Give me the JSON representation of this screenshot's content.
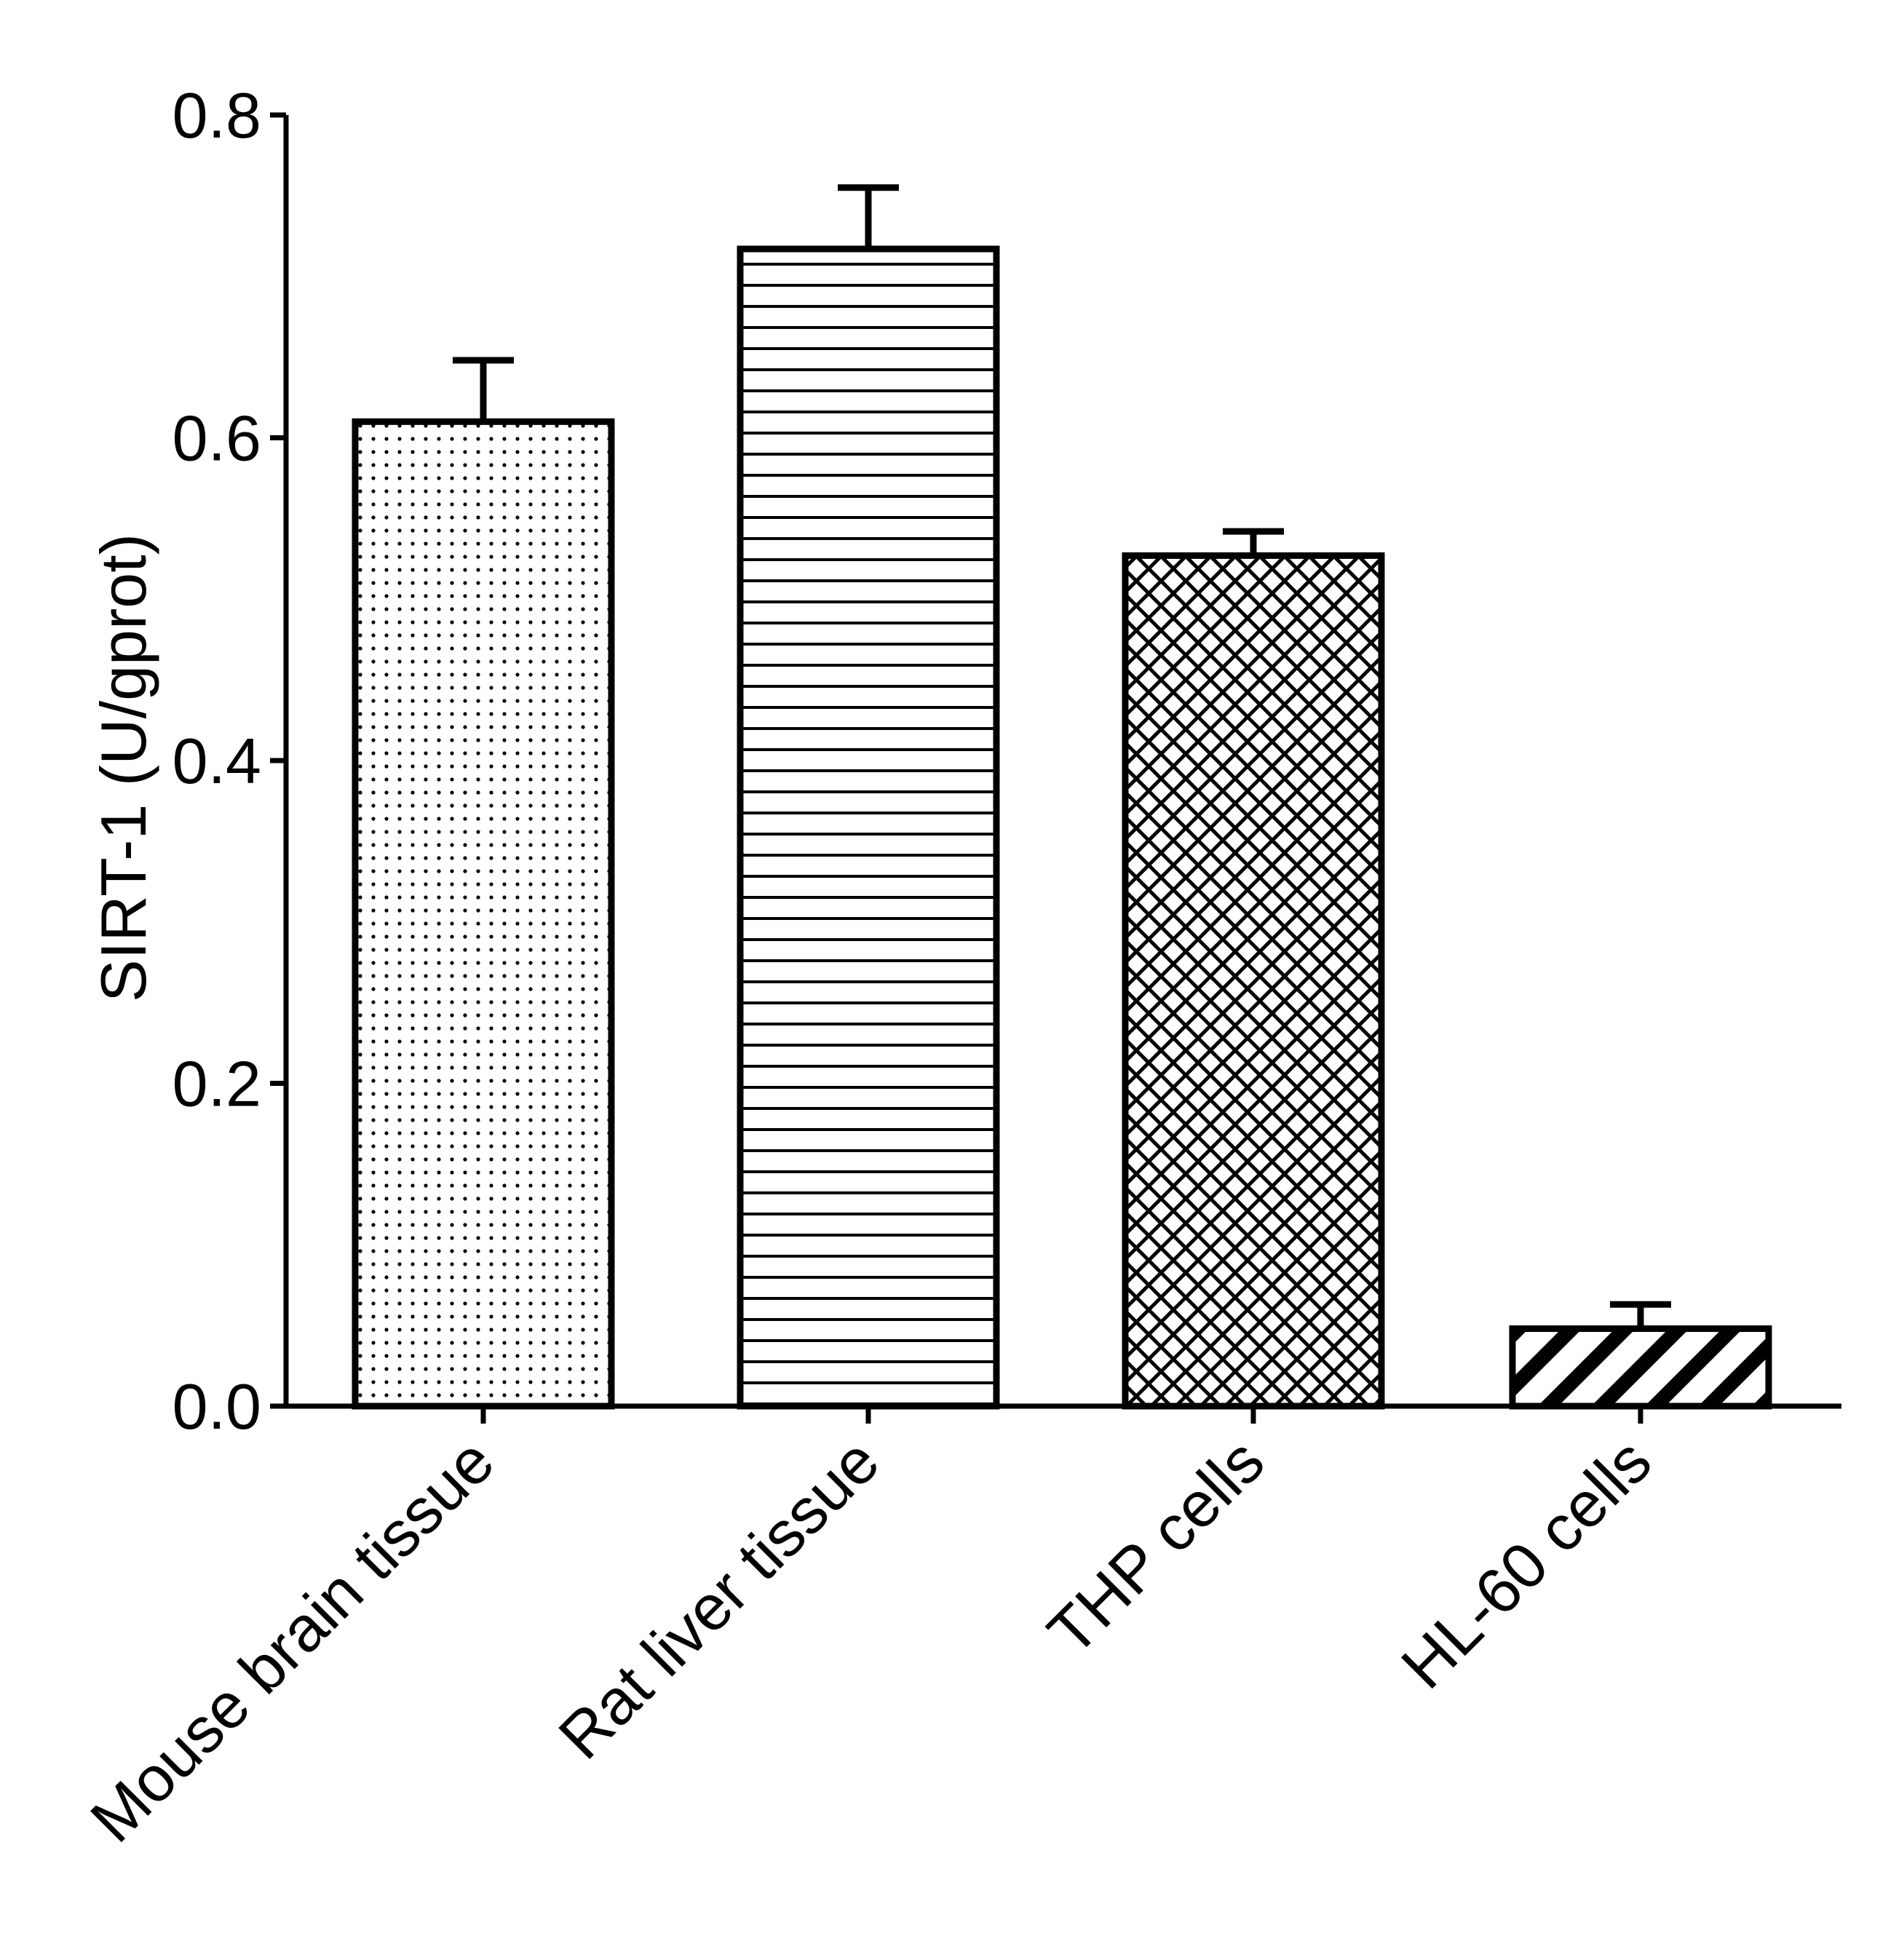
{
  "chart_data": {
    "type": "bar",
    "ylabel": "SIRT-1 (U/gprot)",
    "ylim": [
      0,
      0.8
    ],
    "yticks": [
      "0.0",
      "0.2",
      "0.4",
      "0.6",
      "0.8"
    ],
    "categories": [
      "Mouse brain  tissue",
      "Rat liver tissue",
      "THP cells",
      "HL-60 cells"
    ],
    "values": [
      0.61,
      0.717,
      0.527,
      0.048
    ],
    "errors": [
      0.038,
      0.038,
      0.015,
      0.015
    ],
    "patterns": [
      "dots",
      "horizontal-lines",
      "crosshatch",
      "diagonal-stripes"
    ],
    "grid": false
  }
}
